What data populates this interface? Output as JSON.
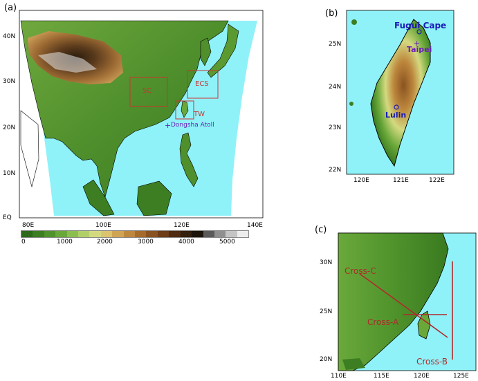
{
  "panels": {
    "a": {
      "label": "(a)",
      "lat_ticks": [
        "40N",
        "30N",
        "20N",
        "10N",
        "EQ"
      ],
      "lon_ticks": [
        "80E",
        "100E",
        "120E",
        "140E"
      ],
      "boxes": [
        {
          "label": "SC",
          "color": "#cc3333"
        },
        {
          "label": "ECS",
          "color": "#cc3333"
        },
        {
          "label": "TW",
          "color": "#cc3333"
        }
      ],
      "markers": [
        {
          "label": "Dongsha Atoll",
          "symbol": "+",
          "color": "#6a1fb8"
        }
      ],
      "colorbar": {
        "ticks": [
          "0",
          "1000",
          "2000",
          "3000",
          "4000",
          "5000"
        ],
        "colors": [
          "#2d6a1a",
          "#3d7e22",
          "#4f932c",
          "#6aa83a",
          "#8cbe4f",
          "#b0cf68",
          "#d4d980",
          "#dcc46e",
          "#cfa553",
          "#bd873d",
          "#a66a2a",
          "#8a5220",
          "#6c3d17",
          "#4e2b12",
          "#33200e",
          "#1c140a",
          "#5a5a5a",
          "#8f8f8f",
          "#c4c4c4",
          "#ededed"
        ]
      }
    },
    "b": {
      "label": "(b)",
      "lat_ticks": [
        "25N",
        "24N",
        "23N",
        "22N"
      ],
      "lon_ticks": [
        "120E",
        "121E",
        "122E"
      ],
      "places": [
        {
          "label": "Fugui Cape",
          "symbol": "o",
          "color": "#1a1ab8"
        },
        {
          "label": "Taipei",
          "symbol": "+",
          "color": "#6a1fb8"
        },
        {
          "label": "Lulin",
          "symbol": "o",
          "color": "#1a1ab8"
        }
      ]
    },
    "c": {
      "label": "(c)",
      "lat_ticks": [
        "30N",
        "25N",
        "20N"
      ],
      "lon_ticks": [
        "110E",
        "115E",
        "120E",
        "125E"
      ],
      "cross_sections": [
        {
          "label": "Cross-C",
          "color": "#b02a2a"
        },
        {
          "label": "Cross-A",
          "color": "#b02a2a"
        },
        {
          "label": "Cross-B",
          "color": "#b02a2a"
        }
      ]
    }
  },
  "colors": {
    "ocean": "#8ff2f8",
    "lowland": "#2f7a1c",
    "box": "#cc3333"
  }
}
